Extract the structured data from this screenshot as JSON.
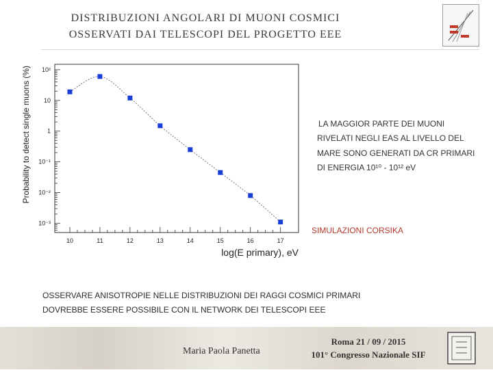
{
  "slide": {
    "title_line1": "DISTRIBUZIONI ANGOLARI DI MUONI COSMICI",
    "title_line2": "OSSERVATI DAI TELESCOPI DEL PROGETTO EEE",
    "side_text": {
      "line1": "LA MAGGIOR PARTE DEI MUONI",
      "line2": "RIVELATI NEGLI EAS AL LIVELLO DEL",
      "line3": "MARE SONO GENERATI DA CR PRIMARI",
      "line4": "DI ENERGIA 10¹⁰ - 10¹² eV"
    },
    "simulation_label": "SIMULAZIONI CORSIKA",
    "observation_line1": "OSSERVARE ANISOTROPIE NELLE DISTRIBUZIONI DEI RAGGI COSMICI PRIMARI",
    "observation_line2": "DOVREBBE ESSERE POSSIBILE CON IL NETWORK DEI TELESCOPI EEE",
    "author": "Maria Paola Panetta",
    "date": "Roma 21 / 09 / 2015",
    "conference": "101° Congresso Nazionale SIF"
  },
  "chart_data": {
    "type": "scatter",
    "x": [
      10,
      11,
      12,
      13,
      14,
      15,
      16,
      17
    ],
    "y": [
      19,
      60,
      12,
      1.5,
      0.25,
      0.045,
      0.008,
      0.0011
    ],
    "xlabel": "log(E primary), eV",
    "ylabel": "Probability to detect single muons (%)",
    "xlim": [
      9.5,
      17.6
    ],
    "ylim": [
      0.0005,
      150
    ],
    "y_scale": "log",
    "x_ticks": [
      "10",
      "11",
      "12",
      "13",
      "14",
      "15",
      "16",
      "17"
    ],
    "y_ticks": [
      {
        "value": 100,
        "label": "10²"
      },
      {
        "value": 10,
        "label": "10"
      },
      {
        "value": 1,
        "label": "1"
      },
      {
        "value": 0.1,
        "label": "10⁻¹"
      },
      {
        "value": 0.01,
        "label": "10⁻²"
      },
      {
        "value": 0.001,
        "label": "10⁻³"
      }
    ],
    "grid": false,
    "marker_color": "#1a3fd8",
    "curve": "smooth-fit"
  }
}
